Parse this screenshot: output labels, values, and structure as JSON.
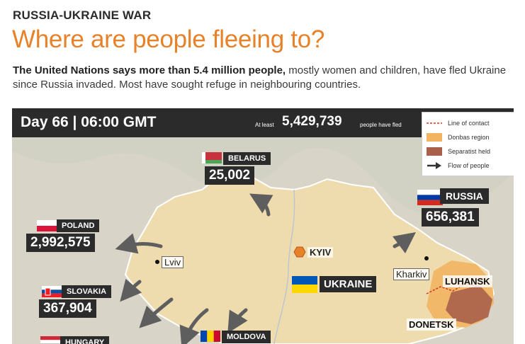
{
  "header": {
    "kicker": "RUSSIA-UKRAINE WAR",
    "headline": "Where are people fleeing to?",
    "intro_bold": "The United Nations says more than 5.4 million people,",
    "intro_rest": " mostly women and children, have fled Ukraine since Russia invaded. Most have sought refuge in neighbouring countries."
  },
  "map": {
    "day_label": "Day 66 | 06:00 GMT",
    "at_least": "At least",
    "total": "5,429,739",
    "fled_suffix": "people have fled",
    "legend": [
      {
        "label": "Line of contact",
        "icon": "dashed-red-line"
      },
      {
        "label": "Donbas region",
        "icon": "orange-swatch",
        "color": "#f2b463"
      },
      {
        "label": "Separatist held",
        "icon": "brown-swatch",
        "color": "#a9604a"
      },
      {
        "label": "Flow of people",
        "icon": "arrow"
      }
    ],
    "countries": [
      {
        "name": "BELARUS",
        "count": "25,002"
      },
      {
        "name": "RUSSIA",
        "count": "656,381"
      },
      {
        "name": "POLAND",
        "count": "2,992,575"
      },
      {
        "name": "SLOVAKIA",
        "count": "367,904"
      },
      {
        "name": "HUNGARY",
        "count": ""
      },
      {
        "name": "MOLDOVA",
        "count": ""
      }
    ],
    "cities": {
      "kyiv": "KYIV",
      "lviv": "Lviv",
      "kharkiv": "Kharkiv"
    },
    "regions": {
      "ukraine": "UKRAINE",
      "luhansk": "LUHANSK",
      "donetsk": "DONETSK"
    },
    "colors": {
      "ukraine_fill": "#efdcae",
      "donbas": "#f2b463",
      "separatist": "#a9604a",
      "arrow": "#5e5e5e",
      "contact_line": "#d0342c",
      "headline": "#e8822a"
    }
  }
}
